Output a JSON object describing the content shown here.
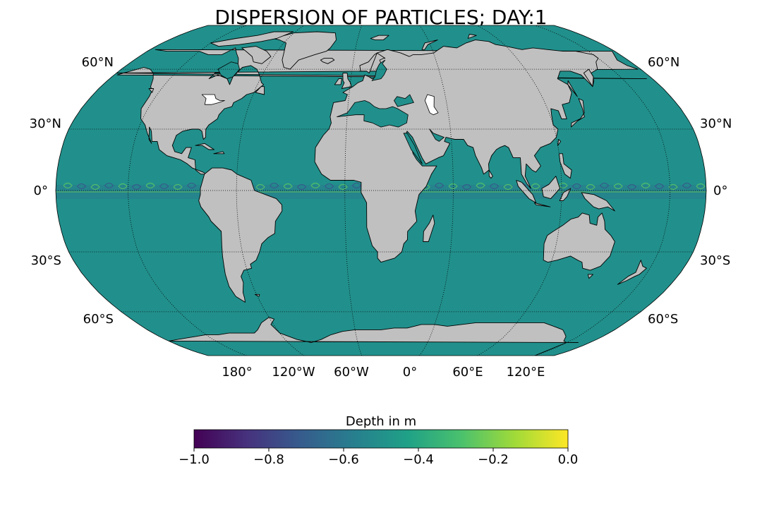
{
  "title": "DISPERSION OF PARTICLES; DAY:1",
  "map": {
    "projection": "Robinson",
    "ocean_color": "#21908c",
    "land_color": "#c0c0c0",
    "coastline_color": "#000000",
    "graticule_style": "dotted",
    "lat_labels_left": [
      "60°N",
      "30°N",
      "0°",
      "30°S",
      "60°S"
    ],
    "lat_labels_right": [
      "60°N",
      "30°N",
      "0°",
      "30°S",
      "60°S"
    ],
    "lon_labels_bottom": [
      "180°",
      "120°W",
      "60°W",
      "0°",
      "60°E",
      "120°E"
    ]
  },
  "colorbar": {
    "label": "Depth in m",
    "colormap": "viridis",
    "min": -1.0,
    "max": 0.0,
    "ticks": [
      "−1.0",
      "−0.8",
      "−0.6",
      "−0.4",
      "−0.2",
      "0.0"
    ],
    "stops": [
      "#440154",
      "#46327e",
      "#365c8d",
      "#277f8e",
      "#1fa187",
      "#4ac16d",
      "#a0da39",
      "#fde725"
    ]
  }
}
